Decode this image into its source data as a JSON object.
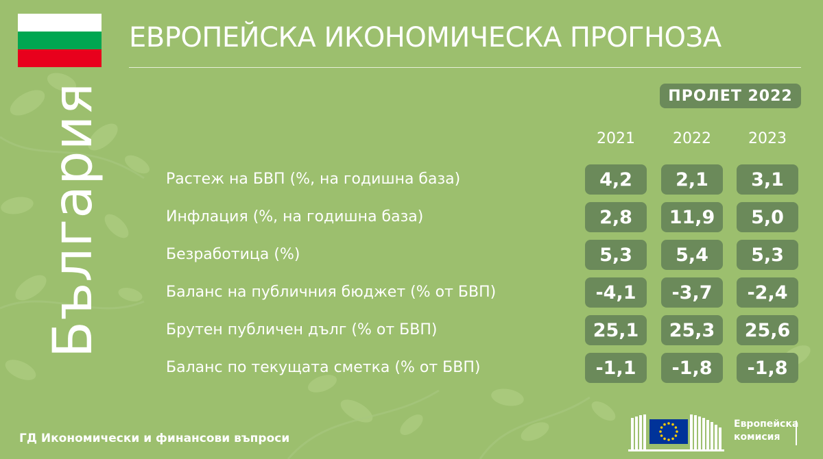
{
  "header": {
    "title": "ЕВРОПЕЙСКА ИКОНОМИЧЕСКА ПРОГНОЗА",
    "season": "ПРОЛЕТ 2022"
  },
  "country": "България",
  "flag_colors": [
    "#ffffff",
    "#00a651",
    "#e8001c"
  ],
  "colors": {
    "background": "#9cbf6e",
    "pill": "#6b8a5a",
    "text": "#ffffff"
  },
  "table": {
    "years": [
      "2021",
      "2022",
      "2023"
    ],
    "rows": [
      {
        "label": "Растеж на БВП (%, на годишна база)",
        "values": [
          "4,2",
          "2,1",
          "3,1"
        ]
      },
      {
        "label": "Инфлация (%, на годишна база)",
        "values": [
          "2,8",
          "11,9",
          "5,0"
        ]
      },
      {
        "label": "Безработица (%)",
        "values": [
          "5,3",
          "5,4",
          "5,3"
        ]
      },
      {
        "label": "Баланс на публичния бюджет (% от БВП)",
        "values": [
          "-4,1",
          "-3,7",
          "-2,4"
        ]
      },
      {
        "label": "Брутен публичен дълг (% от БВП)",
        "values": [
          "25,1",
          "25,3",
          "25,6"
        ]
      },
      {
        "label": "Баланс по текущата сметка (% от БВП)",
        "values": [
          "-1,1",
          "-1,8",
          "-1,8"
        ]
      }
    ]
  },
  "footer": {
    "department": "ГД Икономически и финансови въпроси",
    "logo_line1": "Европейска",
    "logo_line2": "комисия"
  },
  "icons": {
    "flag": "bulgaria-flag-icon",
    "logo": "european-commission-logo-icon",
    "decor": "blossom-branch-decoration-icon"
  }
}
